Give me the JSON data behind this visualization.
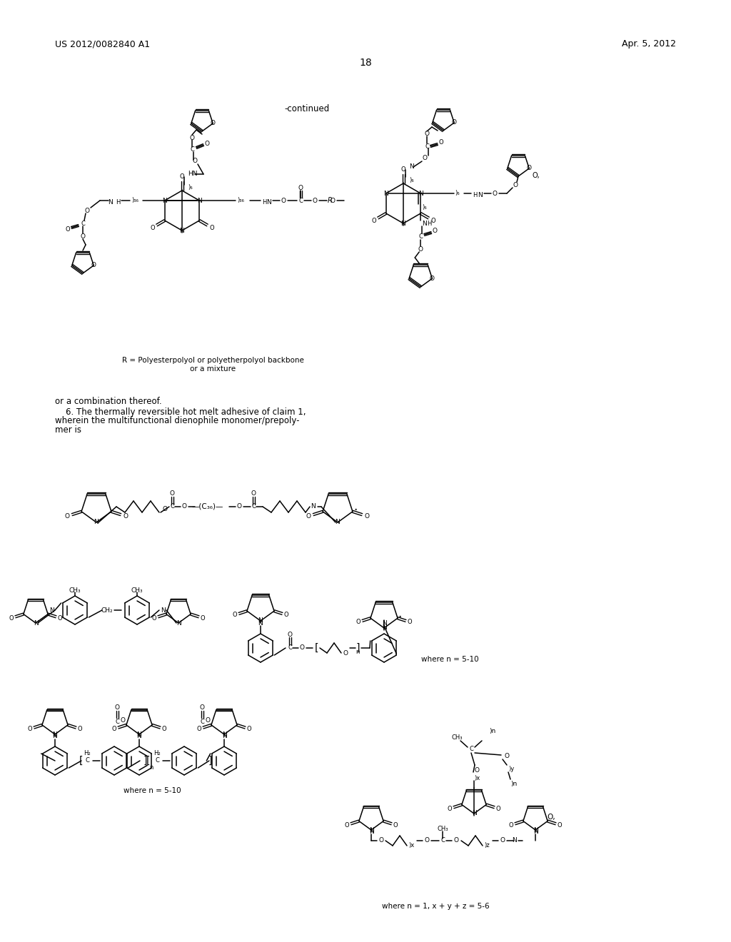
{
  "background_color": "#ffffff",
  "page_number": "18",
  "patent_number": "US 2012/0082840 A1",
  "patent_date": "Apr. 5, 2012",
  "continued_label": "-continued",
  "r_label": "R = Polyesterpolyol or polyetherpolyol backbone\nor a mixture",
  "claim6_text_line1": "or a combination thereof.",
  "claim6_text_line2": "    6. The thermally reversible hot melt adhesive of claim 1,",
  "claim6_text_line3": "wherein the multifunctional dienophile monomer/prepoly-",
  "claim6_text_line4": "mer is",
  "where_n1": "where n = 5-10",
  "where_n2": "where n = 5-10",
  "where_xyz": "where n = 1, x + y + z = 5-6"
}
